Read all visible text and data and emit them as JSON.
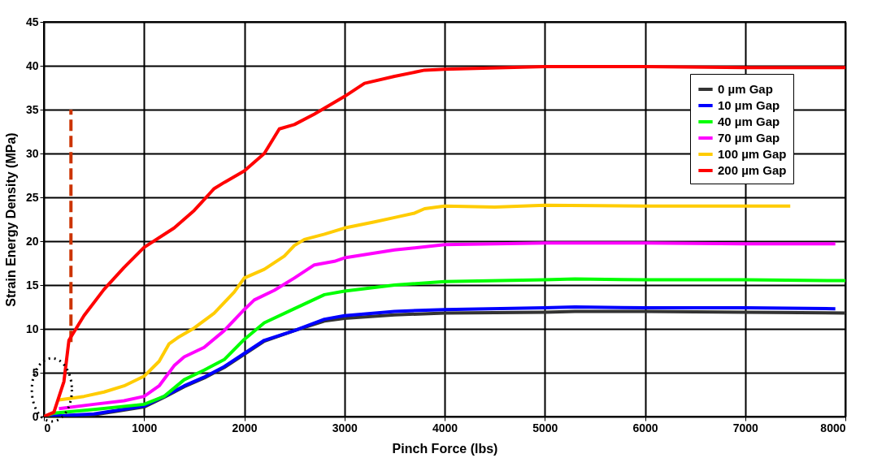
{
  "chart_data": {
    "type": "line",
    "xlabel": "Pinch Force (lbs)",
    "ylabel": "Strain Energy Density (MPa)",
    "xlim": [
      0,
      8000
    ],
    "ylim": [
      0,
      45
    ],
    "xticks": [
      0,
      1000,
      2000,
      3000,
      4000,
      5000,
      6000,
      7000,
      8000
    ],
    "yticks": [
      0,
      5,
      10,
      15,
      20,
      25,
      30,
      35,
      40,
      45
    ],
    "grid": true,
    "legend": "top right",
    "line_style": "solid",
    "series": [
      {
        "name": "0 µm Gap",
        "color": "#333333",
        "x": [
          0,
          500,
          1000,
          1200,
          1400,
          1600,
          1800,
          2000,
          2200,
          2500,
          2800,
          3000,
          3500,
          4000,
          5000,
          5300,
          6000,
          7000,
          8000
        ],
        "values": [
          0,
          0.2,
          1.1,
          2.2,
          3.4,
          4.4,
          5.6,
          7.1,
          8.6,
          9.8,
          10.9,
          11.2,
          11.6,
          11.8,
          11.9,
          12,
          12,
          11.9,
          11.8
        ]
      },
      {
        "name": "10 µm Gap",
        "color": "#0000ff",
        "x": [
          0,
          500,
          1000,
          1200,
          1400,
          1600,
          1800,
          2000,
          2200,
          2500,
          2800,
          3000,
          3500,
          4000,
          5000,
          5300,
          6000,
          7000,
          7900
        ],
        "values": [
          0,
          0.3,
          1.2,
          2.3,
          3.5,
          4.5,
          5.7,
          7.2,
          8.7,
          9.8,
          11.1,
          11.5,
          12,
          12.2,
          12.4,
          12.5,
          12.4,
          12.4,
          12.3
        ]
      },
      {
        "name": "40 µm Gap",
        "color": "#00ff00",
        "x": [
          0,
          100,
          500,
          1000,
          1200,
          1400,
          1600,
          1800,
          2000,
          2200,
          2500,
          2800,
          3000,
          3500,
          4000,
          5000,
          5300,
          6000,
          7000,
          8000
        ],
        "values": [
          0,
          0.4,
          0.8,
          1.4,
          2.3,
          4.2,
          5.3,
          6.5,
          8.8,
          10.7,
          12.3,
          13.9,
          14.3,
          15,
          15.4,
          15.6,
          15.7,
          15.6,
          15.6,
          15.5
        ]
      },
      {
        "name": "70 µm Gap",
        "color": "#ff00ff",
        "x": [
          150,
          500,
          800,
          1000,
          1150,
          1300,
          1400,
          1600,
          1800,
          2000,
          2100,
          2300,
          2500,
          2700,
          2900,
          3000,
          3500,
          4000,
          5000,
          6000,
          7000,
          7900
        ],
        "values": [
          0.9,
          1.4,
          1.8,
          2.3,
          3.5,
          5.8,
          6.8,
          7.9,
          9.8,
          12.2,
          13.3,
          14.4,
          15.8,
          17.3,
          17.7,
          18.1,
          19,
          19.6,
          19.8,
          19.8,
          19.7,
          19.7
        ]
      },
      {
        "name": "100 µm Gap",
        "color": "#ffcc00",
        "x": [
          150,
          400,
          600,
          800,
          1000,
          1150,
          1250,
          1350,
          1500,
          1700,
          1900,
          2000,
          2200,
          2400,
          2500,
          2600,
          2800,
          3000,
          3300,
          3500,
          3700,
          3800,
          4000,
          4500,
          5000,
          6000,
          7000,
          7450
        ],
        "values": [
          1.9,
          2.3,
          2.8,
          3.5,
          4.6,
          6.3,
          8.3,
          9.1,
          10.1,
          11.8,
          14.2,
          15.8,
          16.8,
          18.3,
          19.5,
          20.2,
          20.8,
          21.5,
          22.2,
          22.7,
          23.2,
          23.7,
          24,
          23.9,
          24.1,
          24,
          24,
          24
        ]
      },
      {
        "name": "200 µm Gap",
        "color": "#ff0000",
        "x": [
          0,
          100,
          200,
          250,
          400,
          600,
          800,
          1000,
          1300,
          1500,
          1700,
          1800,
          2000,
          2200,
          2350,
          2500,
          2700,
          3000,
          3200,
          3500,
          3800,
          4000,
          5000,
          6000,
          7000,
          8000
        ],
        "values": [
          0,
          0.5,
          4,
          8.7,
          11.5,
          14.5,
          17,
          19.3,
          21.5,
          23.5,
          26,
          26.7,
          28,
          30,
          32.8,
          33.3,
          34.5,
          36.5,
          38,
          38.8,
          39.5,
          39.6,
          39.9,
          39.9,
          39.8,
          39.8
        ]
      },
      {
        "type": "line",
        "line_style": "dashed",
        "color": "#cc3300",
        "x": [
          270,
          270
        ],
        "values": [
          8.5,
          35
        ]
      }
    ]
  }
}
